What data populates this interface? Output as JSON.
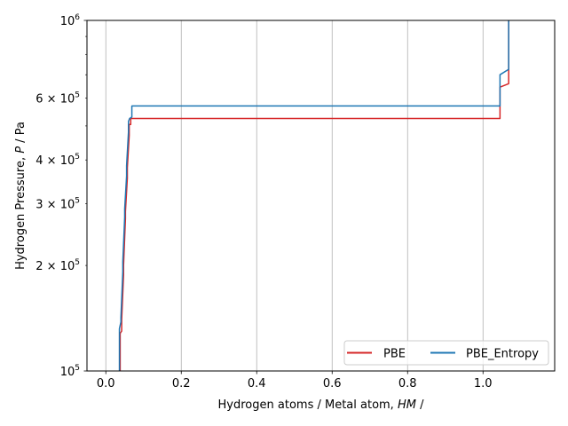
{
  "chart_data": {
    "type": "line",
    "title": "",
    "xlabel": "Hydrogen atoms / Metal atom, ",
    "xlabel_italic": "HM",
    "xlabel_suffix": " /",
    "ylabel": "Hydrogen Pressure, ",
    "ylabel_italic": "P",
    "ylabel_suffix": " / Pa",
    "xlim": [
      -0.05,
      1.19
    ],
    "ylim": [
      100000,
      1000000
    ],
    "yscale": "log",
    "grid": "x",
    "legend_placement": "lower-right",
    "x_ticks": [
      {
        "value": 0.0,
        "label": "0.0"
      },
      {
        "value": 0.2,
        "label": "0.2"
      },
      {
        "value": 0.4,
        "label": "0.4"
      },
      {
        "value": 0.6,
        "label": "0.6"
      },
      {
        "value": 0.8,
        "label": "0.8"
      },
      {
        "value": 1.0,
        "label": "1.0"
      }
    ],
    "y_major_ticks": [
      {
        "value": 100000,
        "mantissa": "",
        "base": "10",
        "exp": "5"
      },
      {
        "value": 1000000,
        "mantissa": "",
        "base": "10",
        "exp": "6"
      }
    ],
    "y_minor_ticks": [
      {
        "value": 200000,
        "mantissa": "2",
        "base": "10",
        "exp": "5",
        "labeled": true
      },
      {
        "value": 300000,
        "mantissa": "3",
        "base": "10",
        "exp": "5",
        "labeled": true
      },
      {
        "value": 400000,
        "mantissa": "4",
        "base": "10",
        "exp": "5",
        "labeled": true
      },
      {
        "value": 500000,
        "mantissa": "",
        "base": "",
        "exp": "",
        "labeled": false
      },
      {
        "value": 600000,
        "mantissa": "6",
        "base": "10",
        "exp": "5",
        "labeled": true
      },
      {
        "value": 700000,
        "mantissa": "",
        "base": "",
        "exp": "",
        "labeled": false
      },
      {
        "value": 800000,
        "mantissa": "",
        "base": "",
        "exp": "",
        "labeled": false
      },
      {
        "value": 900000,
        "mantissa": "",
        "base": "",
        "exp": "",
        "labeled": false
      }
    ],
    "series": [
      {
        "name": "PBE",
        "color": "#d62728",
        "points": [
          [
            0.038,
            100000
          ],
          [
            0.038,
            128000
          ],
          [
            0.042,
            130000
          ],
          [
            0.042,
            140000
          ],
          [
            0.047,
            188000
          ],
          [
            0.047,
            200000
          ],
          [
            0.052,
            272000
          ],
          [
            0.052,
            285000
          ],
          [
            0.057,
            355000
          ],
          [
            0.057,
            380000
          ],
          [
            0.062,
            470000
          ],
          [
            0.062,
            505000
          ],
          [
            0.066,
            505000
          ],
          [
            0.066,
            525000
          ],
          [
            1.045,
            525000
          ],
          [
            1.045,
            645000
          ],
          [
            1.068,
            660000
          ],
          [
            1.068,
            1000000
          ]
        ]
      },
      {
        "name": "PBE_Entropy",
        "color": "#1f77b4",
        "points": [
          [
            0.036,
            100000
          ],
          [
            0.036,
            132000
          ],
          [
            0.04,
            138000
          ],
          [
            0.04,
            142000
          ],
          [
            0.045,
            192000
          ],
          [
            0.045,
            205000
          ],
          [
            0.05,
            275000
          ],
          [
            0.05,
            290000
          ],
          [
            0.055,
            360000
          ],
          [
            0.055,
            385000
          ],
          [
            0.06,
            480000
          ],
          [
            0.06,
            515000
          ],
          [
            0.063,
            525000
          ],
          [
            0.069,
            530000
          ],
          [
            0.069,
            570000
          ],
          [
            1.045,
            570000
          ],
          [
            1.045,
            700000
          ],
          [
            1.068,
            725000
          ],
          [
            1.068,
            1000000
          ]
        ]
      }
    ]
  }
}
